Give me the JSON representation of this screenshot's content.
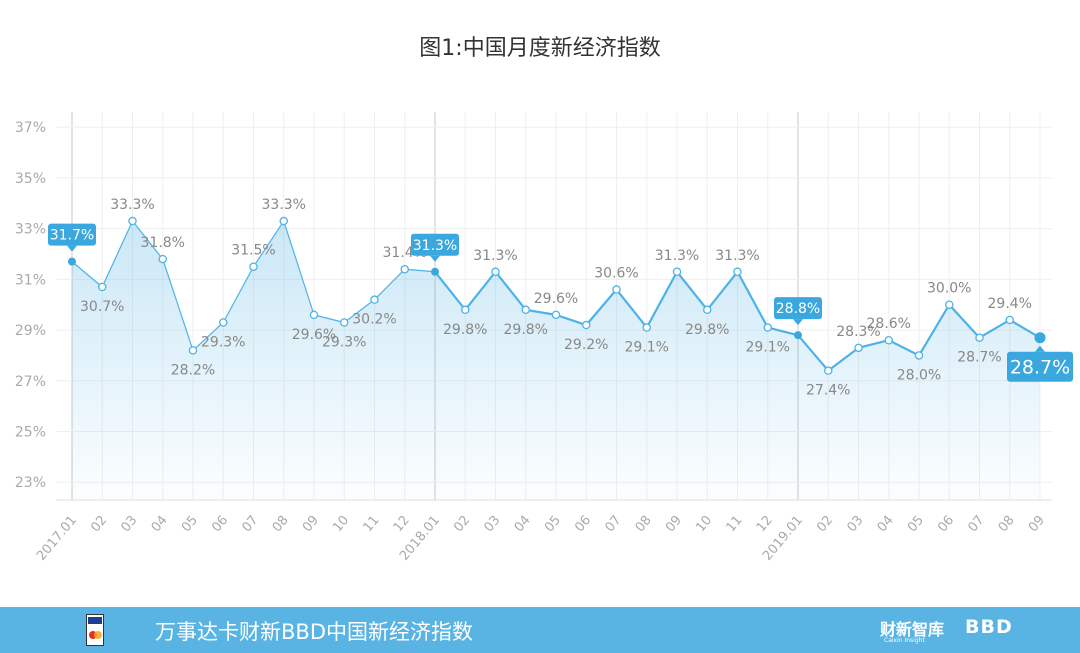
{
  "chart_data": {
    "type": "line",
    "title": "图1:中国月度新经济指数",
    "x_labels": [
      "2017.01",
      "02",
      "03",
      "04",
      "05",
      "06",
      "07",
      "08",
      "09",
      "10",
      "11",
      "12",
      "2018.01",
      "02",
      "03",
      "04",
      "05",
      "06",
      "07",
      "08",
      "09",
      "10",
      "11",
      "12",
      "2019.01",
      "02",
      "03",
      "04",
      "05",
      "06",
      "07",
      "08",
      "09"
    ],
    "values": [
      31.7,
      30.7,
      33.3,
      31.8,
      28.2,
      29.3,
      31.5,
      33.3,
      29.6,
      29.3,
      30.2,
      31.4,
      31.3,
      29.8,
      31.3,
      29.8,
      29.6,
      29.2,
      30.6,
      29.1,
      31.3,
      29.8,
      31.3,
      29.1,
      28.8,
      27.4,
      28.3,
      28.6,
      28.0,
      30.0,
      28.7,
      29.4,
      28.7
    ],
    "value_labels": [
      "31.7%",
      "30.7%",
      "33.3%",
      "31.8%",
      "28.2%",
      "29.3%",
      "31.5%",
      "33.3%",
      "29.6%",
      "29.3%",
      "30.2%",
      "31.4%",
      "31.3%",
      "29.8%",
      "31.3%",
      "29.8%",
      "29.6%",
      "29.2%",
      "30.6%",
      "29.1%",
      "31.3%",
      "29.8%",
      "31.3%",
      "29.1%",
      "28.8%",
      "27.4%",
      "28.3%",
      "28.6%",
      "28.0%",
      "30.0%",
      "28.7%",
      "29.4%",
      "28.7%"
    ],
    "label_position": [
      "callout",
      "below",
      "above",
      "above",
      "below",
      "below",
      "above",
      "above",
      "below",
      "below",
      "below",
      "above",
      "callout",
      "below",
      "above",
      "below",
      "above",
      "below",
      "above",
      "below",
      "above",
      "below",
      "above",
      "below",
      "callout",
      "below",
      "above",
      "above",
      "below",
      "above",
      "below",
      "above",
      "callout"
    ],
    "y_ticks": [
      "23%",
      "25%",
      "27%",
      "29%",
      "31%",
      "33%",
      "35%",
      "37%"
    ],
    "ylim": [
      22.3,
      37.6
    ],
    "grid": true,
    "year_dividers": [
      "2017.01",
      "2018.01",
      "2019.01"
    ],
    "colors": {
      "line": "#4db3e6",
      "fill": "#5bb5e5",
      "callout": "#3aa7de",
      "label": "#888888",
      "axis": "#bbbbbb"
    }
  },
  "footer": {
    "text": "万事达卡财新BBD中国新经济指数",
    "brand1": "财新智库",
    "brand1_sub": "Caixin Insight",
    "brand2": "BBD"
  }
}
